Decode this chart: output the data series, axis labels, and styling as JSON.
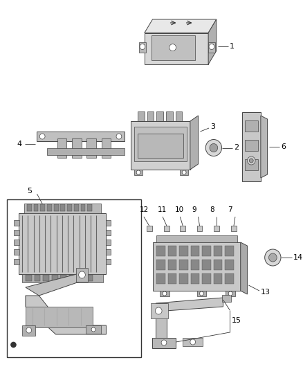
{
  "bg_color": "#ffffff",
  "line_color": "#555555",
  "label_color": "#000000",
  "dark": "#2a2a2a",
  "part_gray": "#c8c8c8",
  "part_dark": "#888888",
  "part_light": "#e8e8e8",
  "edge_color": "#444444",
  "figsize": [
    4.38,
    5.33
  ],
  "dpi": 100
}
